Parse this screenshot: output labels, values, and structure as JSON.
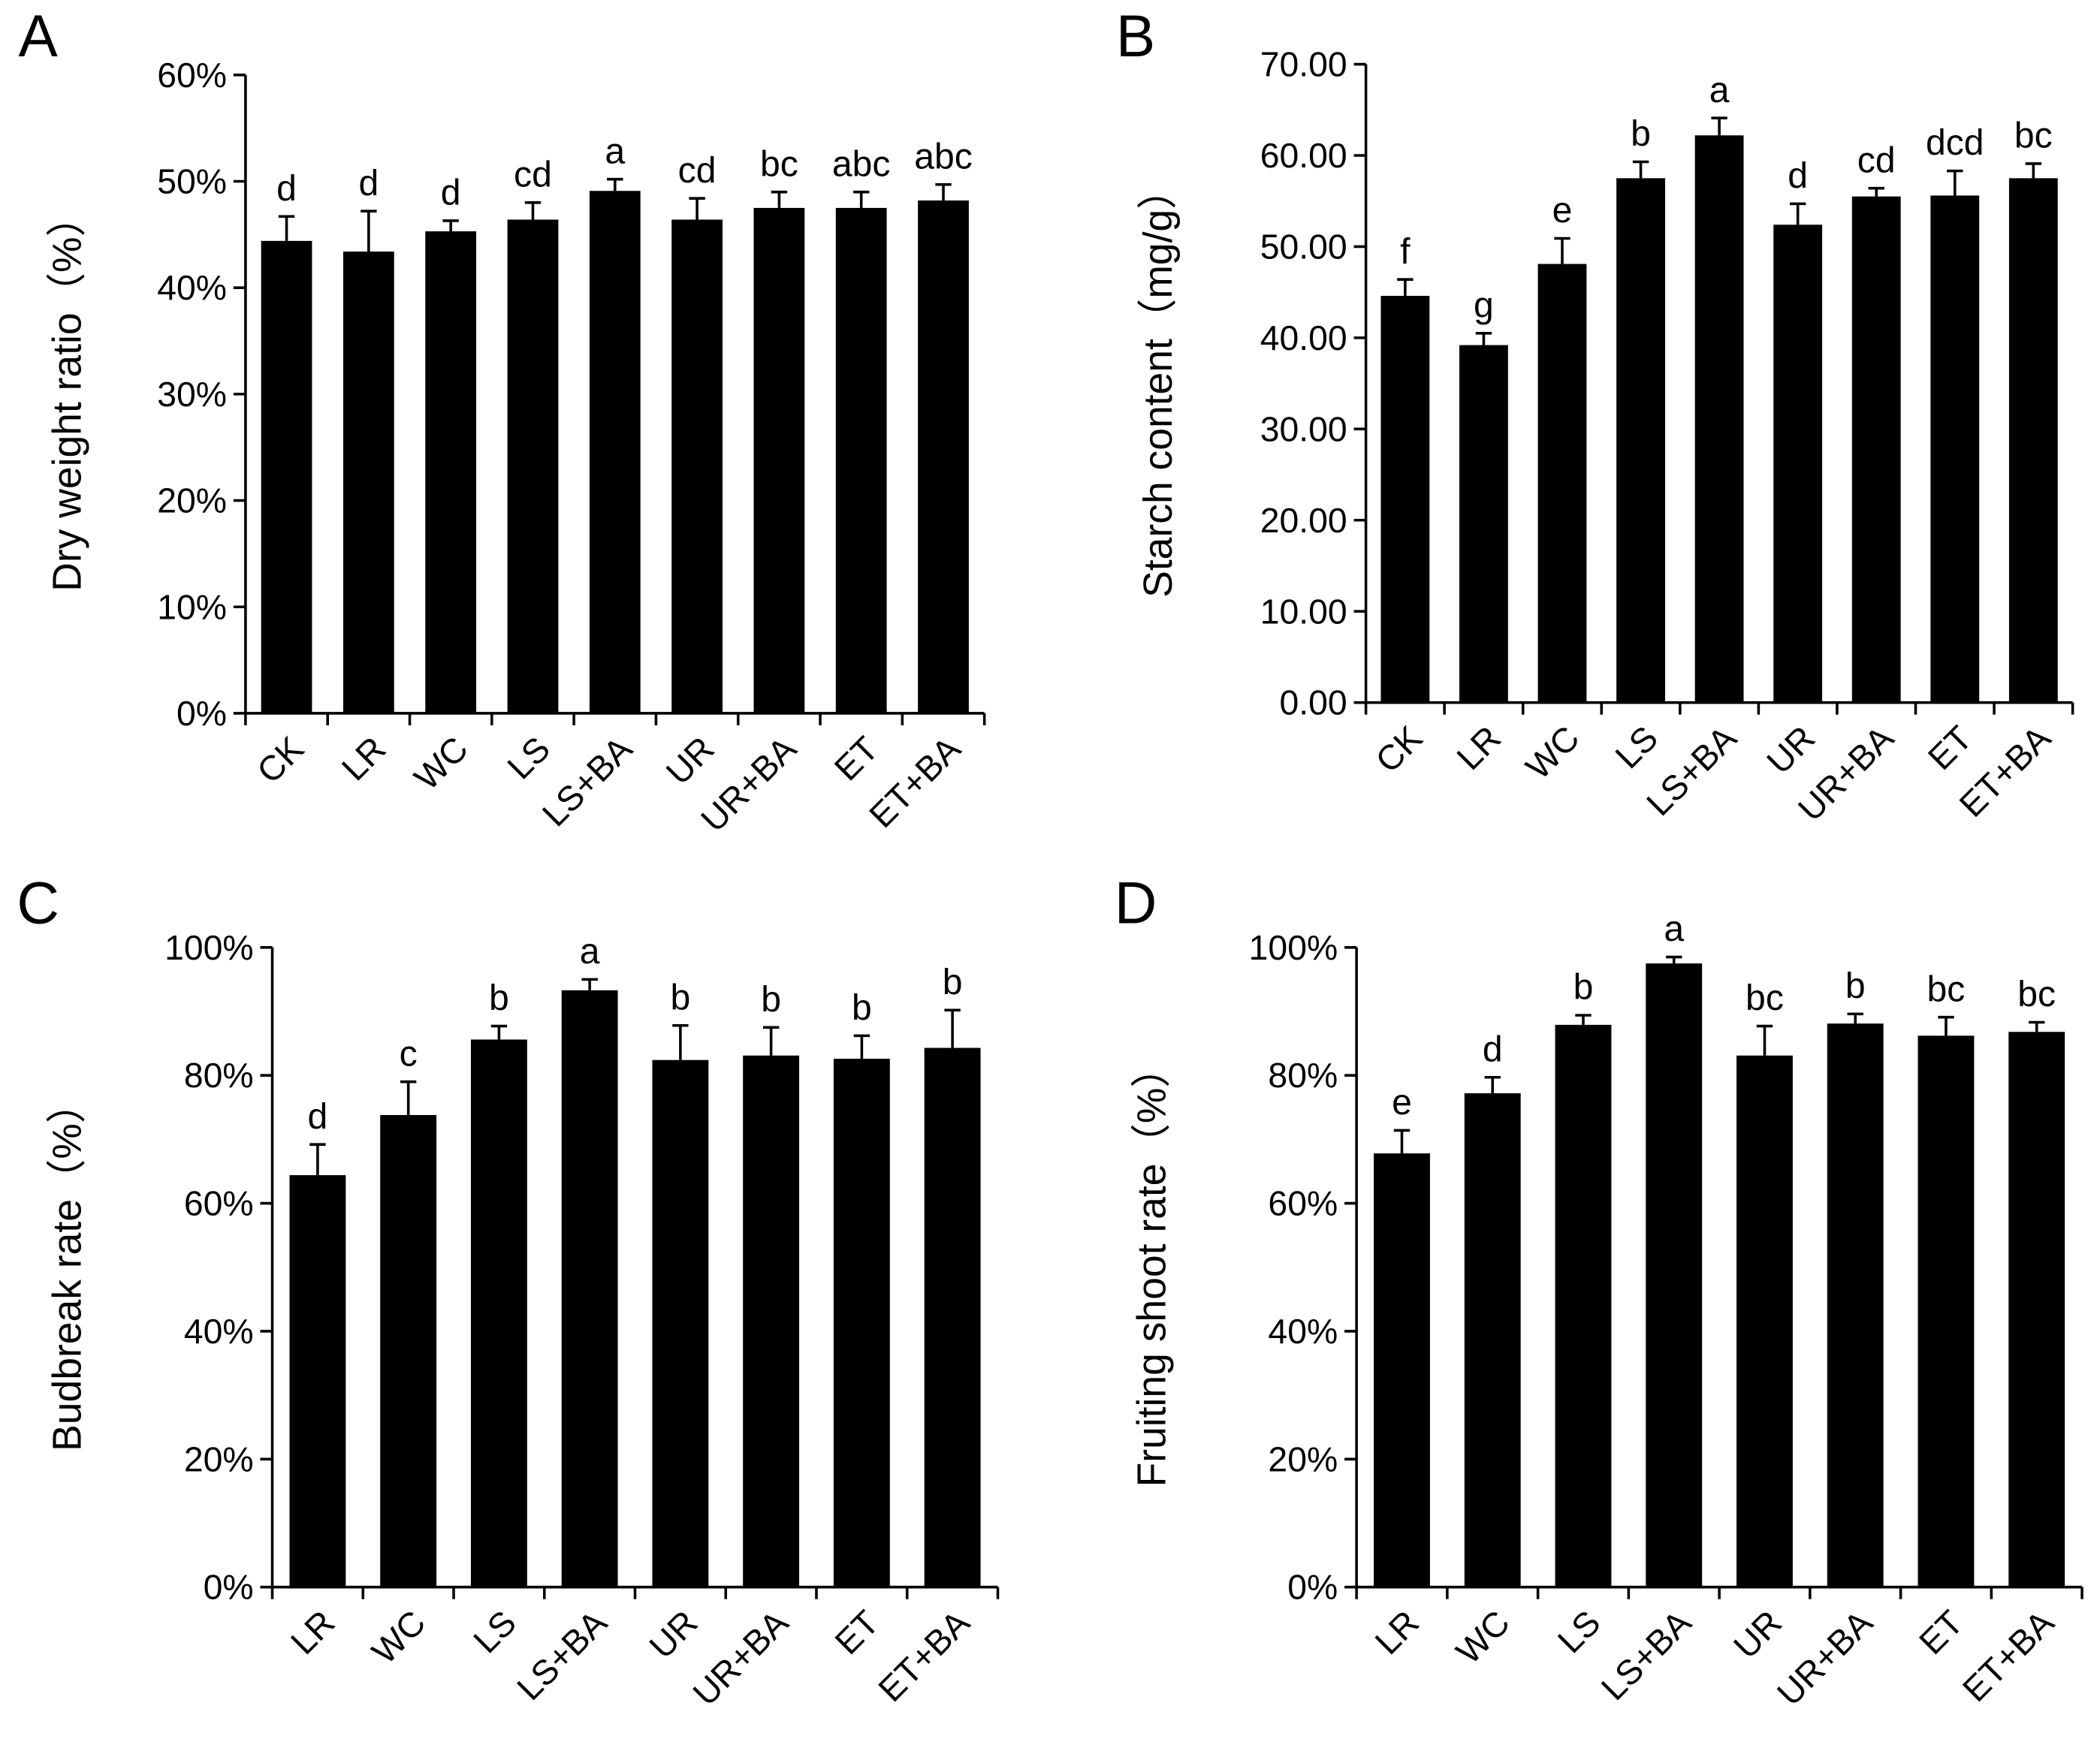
{
  "chart_data": [
    {
      "type": "bar",
      "panel": "A",
      "y_label": "Dry weight ratio（%）",
      "categories": [
        "CK",
        "LR",
        "WC",
        "LS",
        "LS+BA",
        "UR",
        "UR+BA",
        "ET",
        "ET+BA"
      ],
      "values": [
        44.4,
        43.4,
        45.3,
        46.4,
        49.1,
        46.4,
        47.5,
        47.5,
        48.2
      ],
      "errors": [
        2.3,
        3.8,
        1.0,
        1.6,
        1.1,
        2.0,
        1.5,
        1.5,
        1.5
      ],
      "annotations": [
        "d",
        "d",
        "d",
        "cd",
        "a",
        "cd",
        "bc",
        "abc",
        "abc"
      ],
      "color": "#000000",
      "ylim": [
        0,
        60
      ],
      "yticks": [
        {
          "value": 0,
          "label": "0%"
        },
        {
          "value": 10,
          "label": "10%"
        },
        {
          "value": 20,
          "label": "20%"
        },
        {
          "value": 30,
          "label": "30%"
        },
        {
          "value": 40,
          "label": "40%"
        },
        {
          "value": 50,
          "label": "50%"
        },
        {
          "value": 60,
          "label": "60%"
        }
      ],
      "grid": false
    },
    {
      "type": "bar",
      "panel": "B",
      "y_label": "Starch content（mg/g）",
      "categories": [
        "CK",
        "LR",
        "WC",
        "LS",
        "LS+BA",
        "UR",
        "UR+BA",
        "ET",
        "ET+BA"
      ],
      "values": [
        44.6,
        39.2,
        48.1,
        57.5,
        62.2,
        52.4,
        55.5,
        55.6,
        57.5
      ],
      "errors": [
        1.8,
        1.3,
        2.8,
        1.8,
        1.9,
        2.3,
        0.9,
        2.7,
        1.6
      ],
      "annotations": [
        "f",
        "g",
        "e",
        "b",
        "a",
        "d",
        "cd",
        "dcd",
        "bc"
      ],
      "color": "#000000",
      "ylim": [
        0,
        70
      ],
      "yticks": [
        {
          "value": 0,
          "label": "0.00"
        },
        {
          "value": 10,
          "label": "10.00"
        },
        {
          "value": 20,
          "label": "20.00"
        },
        {
          "value": 30,
          "label": "30.00"
        },
        {
          "value": 40,
          "label": "40.00"
        },
        {
          "value": 50,
          "label": "50.00"
        },
        {
          "value": 60,
          "label": "60.00"
        },
        {
          "value": 70,
          "label": "70.00"
        }
      ],
      "grid": false
    },
    {
      "type": "bar",
      "panel": "C",
      "y_label": "Budbreak rate（%）",
      "categories": [
        "LR",
        "WC",
        "LS",
        "LS+BA",
        "UR",
        "UR+BA",
        "ET",
        "ET+BA"
      ],
      "values": [
        64.4,
        73.8,
        85.6,
        93.3,
        82.4,
        83.1,
        82.6,
        84.3
      ],
      "errors": [
        4.8,
        5.2,
        2.1,
        1.7,
        5.4,
        4.4,
        3.6,
        5.9
      ],
      "annotations": [
        "d",
        "c",
        "b",
        "a",
        "b",
        "b",
        "b",
        "b"
      ],
      "color": "#000000",
      "ylim": [
        0,
        100
      ],
      "yticks": [
        {
          "value": 0,
          "label": "0%"
        },
        {
          "value": 20,
          "label": "20%"
        },
        {
          "value": 40,
          "label": "40%"
        },
        {
          "value": 60,
          "label": "60%"
        },
        {
          "value": 80,
          "label": "80%"
        },
        {
          "value": 100,
          "label": "100%"
        }
      ],
      "grid": false
    },
    {
      "type": "bar",
      "panel": "D",
      "y_label": "Fruiting shoot rate（%）",
      "categories": [
        "LR",
        "WC",
        "LS",
        "LS+BA",
        "UR",
        "UR+BA",
        "ET",
        "ET+BA"
      ],
      "values": [
        67.8,
        77.2,
        87.9,
        97.5,
        83.1,
        88.1,
        86.2,
        86.8
      ],
      "errors": [
        3.6,
        2.5,
        1.5,
        1.0,
        4.6,
        1.5,
        2.9,
        1.5
      ],
      "annotations": [
        "e",
        "d",
        "b",
        "a",
        "bc",
        "b",
        "bc",
        "bc"
      ],
      "color": "#000000",
      "ylim": [
        0,
        100
      ],
      "yticks": [
        {
          "value": 0,
          "label": "0%"
        },
        {
          "value": 20,
          "label": "20%"
        },
        {
          "value": 40,
          "label": "40%"
        },
        {
          "value": 60,
          "label": "60%"
        },
        {
          "value": 80,
          "label": "80%"
        },
        {
          "value": 100,
          "label": "100%"
        }
      ],
      "grid": false
    }
  ]
}
